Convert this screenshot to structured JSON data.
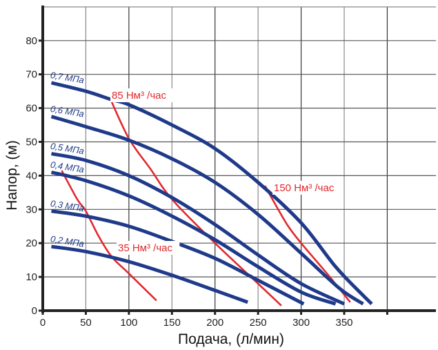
{
  "chart_data": {
    "type": "line",
    "title": "",
    "xlabel": "Подача, (л/мин)",
    "ylabel": "Напор, (м)",
    "xlim": [
      0,
      450
    ],
    "ylim": [
      0,
      88
    ],
    "x_ticks": [
      0,
      50,
      100,
      150,
      200,
      250,
      300,
      350,
      400
    ],
    "x_tick_labels": [
      "0",
      "50",
      "100",
      "150",
      "200",
      "250",
      "300",
      "350",
      ""
    ],
    "y_ticks": [
      0,
      10,
      20,
      30,
      40,
      50,
      60,
      70,
      80
    ],
    "y_tick_labels": [
      "0",
      "10",
      "20",
      "30",
      "40",
      "50",
      "60",
      "70",
      "80"
    ],
    "grid": true,
    "colors": {
      "pressure": "#1f3a8a",
      "airflow": "#e0282e"
    },
    "series": [
      {
        "name": "0,7 МПа",
        "group": "pressure",
        "x": [
          10,
          50,
          80,
          100,
          150,
          200,
          250,
          300,
          340,
          370,
          382
        ],
        "y": [
          67.5,
          65,
          62.5,
          61,
          55,
          48,
          38,
          26,
          13,
          5,
          2
        ]
      },
      {
        "name": "0,6 МПа",
        "group": "pressure",
        "x": [
          10,
          50,
          100,
          150,
          200,
          250,
          300,
          345,
          372
        ],
        "y": [
          57.5,
          54.5,
          50.5,
          45,
          38,
          28.5,
          17,
          6.5,
          2
        ]
      },
      {
        "name": "0,5 МПа",
        "group": "pressure",
        "x": [
          10,
          50,
          100,
          150,
          200,
          250,
          300,
          350
        ],
        "y": [
          46.5,
          44.5,
          40,
          33.5,
          25.5,
          16.5,
          8,
          2
        ]
      },
      {
        "name": "0,4 МПа",
        "group": "pressure",
        "x": [
          10,
          50,
          100,
          150,
          200,
          250,
          300,
          340
        ],
        "y": [
          41,
          38.5,
          34,
          28,
          21,
          13,
          5.5,
          2
        ]
      },
      {
        "name": "0,3 МПа",
        "group": "pressure",
        "x": [
          10,
          50,
          100,
          150,
          200,
          250,
          303
        ],
        "y": [
          29.5,
          28,
          25,
          20.5,
          15.5,
          9,
          2
        ]
      },
      {
        "name": "0,2 МПа",
        "group": "pressure",
        "x": [
          10,
          50,
          100,
          150,
          200,
          238
        ],
        "y": [
          19,
          17.5,
          14.5,
          10.5,
          6,
          2.5
        ]
      },
      {
        "name": "35 Нм³ /час",
        "group": "airflow",
        "x": [
          22,
          40,
          50,
          65,
          80,
          100,
          132
        ],
        "y": [
          41.5,
          33,
          29.5,
          22,
          16,
          11,
          3
        ]
      },
      {
        "name": "85 Нм³ /час",
        "group": "airflow",
        "x": [
          78,
          100,
          125,
          150,
          200,
          250,
          277
        ],
        "y": [
          63,
          51,
          42,
          33,
          20,
          8,
          1.5
        ]
      },
      {
        "name": "150 Нм³ /час",
        "group": "airflow",
        "x": [
          258,
          270,
          285,
          300,
          330,
          357
        ],
        "y": [
          37,
          31.5,
          25,
          20,
          11,
          2.5
        ]
      }
    ],
    "annotations": [
      {
        "text": "0,7 МПа",
        "series": "0,7 МПа"
      },
      {
        "text": "0,6 МПа",
        "series": "0,6 МПа"
      },
      {
        "text": "0,5 МПа",
        "series": "0,5 МПа"
      },
      {
        "text": "0,4 МПа",
        "series": "0,4 МПа"
      },
      {
        "text": "0,3 МПа",
        "series": "0,3 МПа"
      },
      {
        "text": "0,2 МПа",
        "series": "0,2 МПа"
      },
      {
        "text": "85 Нм³ /час",
        "series": "85 Нм³ /час"
      },
      {
        "text": "150 Нм³ /час",
        "series": "150 Нм³ /час"
      },
      {
        "text": "35 Нм³ /час",
        "series": "35 Нм³ /час"
      }
    ]
  }
}
